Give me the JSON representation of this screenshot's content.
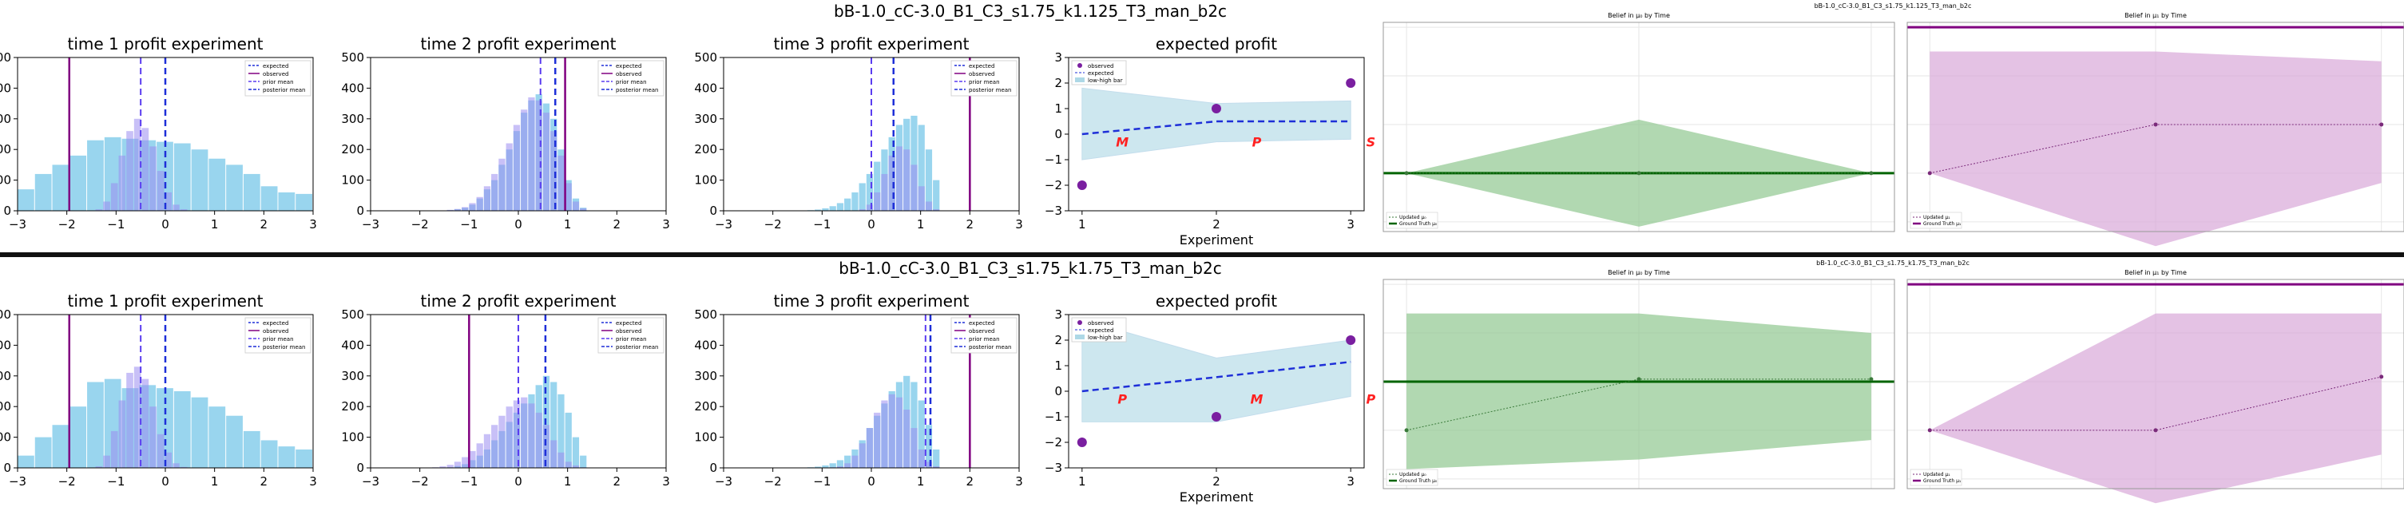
{
  "colors": {
    "hist_blue": "#87ceeb",
    "hist_purple": "#9b8cf0",
    "line_purple": "#800080",
    "dash_blue": "#1e2fd8",
    "band_blue": "#add8e6",
    "band_green": "#90c890",
    "band_purple": "#d8a8d8",
    "truth_green": "#006400"
  },
  "rows": [
    {
      "title": "bB-1.0_cC-3.0_B1_C3_s1.75_k1.125_T3_man_b2c",
      "small_title": "bB-1.0_cC-3.0_B1_C3_s1.75_k1.125_T3_man_b2c",
      "hists": [
        {
          "title": "time 1 profit experiment",
          "observed": -1.95,
          "prior_mean": -0.5,
          "posterior_mean": 0.0,
          "blue": [
            70,
            120,
            150,
            180,
            230,
            240,
            235,
            230,
            225,
            220,
            200,
            170,
            150,
            120,
            80,
            60,
            55
          ],
          "purple": [
            0,
            0,
            0,
            0,
            0,
            5,
            30,
            90,
            180,
            260,
            300,
            270,
            210,
            130,
            60,
            20,
            5,
            0,
            0,
            0,
            0,
            0,
            0
          ],
          "blue_lo": -3,
          "blue_hi": 3,
          "purple_lo": -2.2,
          "purple_hi": 1.4
        },
        {
          "title": "time 2 profit experiment",
          "observed": 0.95,
          "prior_mean": 0.45,
          "posterior_mean": 0.75,
          "blue": [
            0,
            0,
            0,
            0,
            0,
            2,
            5,
            10,
            20,
            40,
            70,
            100,
            150,
            200,
            260,
            320,
            360,
            380,
            350,
            300,
            200,
            100,
            40,
            10
          ],
          "purple": [
            0,
            0,
            0,
            0,
            0,
            3,
            6,
            12,
            25,
            45,
            80,
            120,
            170,
            220,
            280,
            330,
            370,
            360,
            320,
            260,
            180,
            90,
            30,
            8
          ],
          "blue_lo": -2.2,
          "blue_hi": 1.4,
          "purple_lo": -2.2,
          "purple_hi": 1.4
        },
        {
          "title": "time 3 profit experiment",
          "observed": 2.0,
          "prior_mean": 0.0,
          "posterior_mean": 0.45,
          "blue": [
            0,
            0,
            0,
            0,
            0,
            0,
            2,
            4,
            8,
            15,
            25,
            40,
            60,
            90,
            120,
            160,
            200,
            240,
            280,
            300,
            310,
            280,
            200,
            100
          ],
          "purple": [
            0,
            0,
            0,
            0,
            0,
            0,
            0,
            0,
            0,
            0,
            0,
            0,
            0,
            5,
            20,
            60,
            120,
            180,
            210,
            200,
            150,
            80,
            30,
            5
          ],
          "blue_lo": -2.2,
          "blue_hi": 1.4,
          "purple_lo": -2.2,
          "purple_hi": 1.4
        }
      ],
      "expected": {
        "title": "expected profit",
        "xlabel": "Experiment",
        "observed": [
          -2,
          1,
          2
        ],
        "line": [
          0,
          0.5,
          0.5
        ],
        "band_lo": [
          -1.0,
          -0.3,
          -0.2
        ],
        "band_hi": [
          1.8,
          1.2,
          1.3
        ],
        "letters": [
          "M",
          "P",
          "S"
        ]
      },
      "beliefs": [
        {
          "title": "Belief in μ₀ by Time",
          "truth": 0.0,
          "mean": [
            0,
            0,
            0
          ],
          "lo": [
            0,
            -1.1,
            0
          ],
          "hi": [
            0,
            1.1,
            0
          ],
          "color": "green"
        },
        {
          "title": "Belief in μ₁ by Time",
          "truth": 3.0,
          "mean": [
            0,
            1.0,
            1.0
          ],
          "lo": [
            0,
            -1.5,
            -0.2
          ],
          "hi": [
            2.5,
            2.5,
            2.3
          ],
          "color": "purple"
        }
      ]
    },
    {
      "title": "bB-1.0_cC-3.0_B1_C3_s1.75_k1.75_T3_man_b2c",
      "small_title": "bB-1.0_cC-3.0_B1_C3_s1.75_k1.75_T3_man_b2c",
      "hists": [
        {
          "title": "time 1 profit experiment",
          "observed": -1.95,
          "prior_mean": -0.5,
          "posterior_mean": 0.0,
          "blue": [
            40,
            100,
            140,
            200,
            280,
            290,
            260,
            270,
            260,
            250,
            230,
            200,
            170,
            120,
            90,
            70,
            60
          ],
          "purple": [
            0,
            0,
            0,
            0,
            0,
            5,
            40,
            120,
            220,
            310,
            330,
            290,
            200,
            110,
            50,
            15,
            3,
            0,
            0,
            0,
            0,
            0,
            0
          ],
          "blue_lo": -3,
          "blue_hi": 3,
          "purple_lo": -2.2,
          "purple_hi": 1.4
        },
        {
          "title": "time 2 profit experiment",
          "observed": -1.0,
          "prior_mean": 0.0,
          "posterior_mean": 0.55,
          "blue": [
            0,
            0,
            0,
            0,
            0,
            2,
            6,
            12,
            25,
            40,
            60,
            90,
            120,
            150,
            180,
            210,
            240,
            270,
            300,
            280,
            240,
            180,
            100,
            40
          ],
          "purple": [
            0,
            0,
            0,
            2,
            5,
            10,
            20,
            35,
            55,
            80,
            110,
            140,
            170,
            200,
            220,
            230,
            210,
            180,
            140,
            90,
            50,
            20,
            8,
            2
          ],
          "blue_lo": -2.2,
          "blue_hi": 1.4,
          "purple_lo": -2.2,
          "purple_hi": 1.4
        },
        {
          "title": "time 3 profit experiment",
          "observed": 2.0,
          "prior_mean": 1.1,
          "posterior_mean": 1.2,
          "blue": [
            0,
            0,
            0,
            0,
            0,
            0,
            2,
            4,
            8,
            15,
            25,
            40,
            60,
            90,
            130,
            170,
            210,
            250,
            280,
            300,
            280,
            220,
            140,
            60
          ],
          "purple": [
            0,
            0,
            0,
            0,
            0,
            0,
            0,
            0,
            0,
            2,
            5,
            15,
            40,
            80,
            130,
            180,
            220,
            240,
            230,
            190,
            130,
            60,
            20,
            5
          ],
          "blue_lo": -2.2,
          "blue_hi": 1.4,
          "purple_lo": -2.2,
          "purple_hi": 1.4
        }
      ],
      "expected": {
        "title": "expected profit",
        "xlabel": "Experiment",
        "observed": [
          -2,
          -1,
          2
        ],
        "line": [
          0,
          0.55,
          1.15
        ],
        "band_lo": [
          -1.2,
          -1.2,
          -0.2
        ],
        "band_hi": [
          2.8,
          1.3,
          2.0
        ],
        "letters": [
          "P",
          "M",
          "P"
        ]
      },
      "beliefs": [
        {
          "title": "Belief in μ₀ by Time",
          "truth": 1.0,
          "mean": [
            0,
            1.05,
            1.05
          ],
          "lo": [
            -0.8,
            -0.6,
            -0.2
          ],
          "hi": [
            2.4,
            2.4,
            2.0
          ],
          "color": "green"
        },
        {
          "title": "Belief in μ₁ by Time",
          "truth": 3.0,
          "mean": [
            0,
            0,
            1.1
          ],
          "lo": [
            0,
            -1.5,
            -0.5
          ],
          "hi": [
            0,
            2.4,
            2.4
          ],
          "color": "purple"
        }
      ]
    }
  ],
  "legend_hist": [
    "expected",
    "observed",
    "prior mean",
    "posterior mean"
  ],
  "legend_expected": [
    "observed",
    "expected",
    "low-high bar"
  ],
  "legend_belief_green": [
    "Updated μ₀",
    "Ground Truth μ₀"
  ],
  "legend_belief_purple": [
    "Updated μ₁",
    "Ground Truth μ₁"
  ],
  "hist_yticks": [
    "0",
    "100",
    "200",
    "300",
    "400",
    "500"
  ],
  "hist_xticks": [
    "−3",
    "−2",
    "−1",
    "0",
    "1",
    "2",
    "3"
  ],
  "exp_yticks": [
    "−3",
    "−2",
    "−1",
    "0",
    "1",
    "2",
    "3"
  ],
  "exp_xticks": [
    "1",
    "2",
    "3"
  ]
}
